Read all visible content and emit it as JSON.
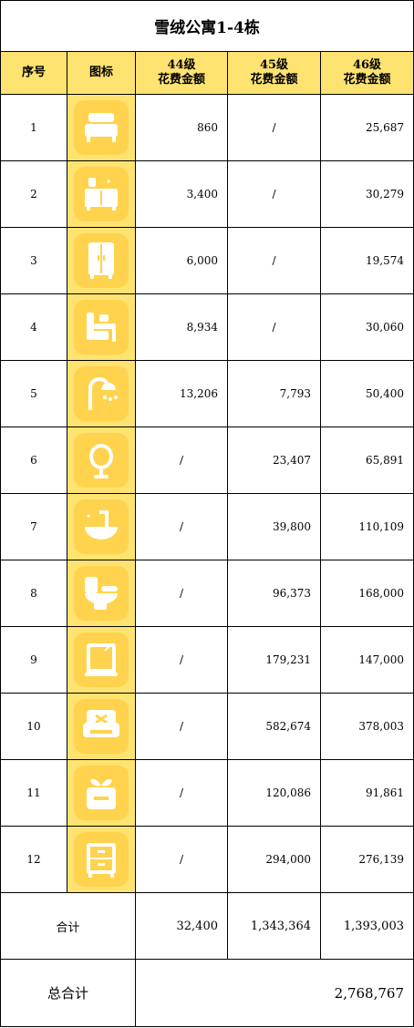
{
  "title": "雪绒公寓1-4栋",
  "headers": {
    "index": "序号",
    "icon": "图标",
    "lv44": "44级\n花费金额",
    "lv45": "45级\n花费金额",
    "lv46": "46级\n花费金额"
  },
  "rows": [
    {
      "no": "1",
      "icon": "bed-icon",
      "lv44": "860",
      "lv45": "/",
      "lv46": "25,687"
    },
    {
      "no": "2",
      "icon": "cabinet-icon",
      "lv44": "3,400",
      "lv45": "/",
      "lv46": "30,279"
    },
    {
      "no": "3",
      "icon": "wardrobe-icon",
      "lv44": "6,000",
      "lv45": "/",
      "lv46": "19,574"
    },
    {
      "no": "4",
      "icon": "desk-icon",
      "lv44": "8,934",
      "lv45": "/",
      "lv46": "30,060"
    },
    {
      "no": "5",
      "icon": "shower-icon",
      "lv44": "13,206",
      "lv45": "7,793",
      "lv46": "50,400"
    },
    {
      "no": "6",
      "icon": "mirror-icon",
      "lv44": "/",
      "lv45": "23,407",
      "lv46": "65,891"
    },
    {
      "no": "7",
      "icon": "sink-icon",
      "lv44": "/",
      "lv45": "39,800",
      "lv46": "110,109"
    },
    {
      "no": "8",
      "icon": "toilet-icon",
      "lv44": "/",
      "lv45": "96,373",
      "lv46": "168,000"
    },
    {
      "no": "9",
      "icon": "window-icon",
      "lv44": "/",
      "lv45": "179,231",
      "lv46": "147,000"
    },
    {
      "no": "10",
      "icon": "sofa-icon",
      "lv44": "/",
      "lv45": "582,674",
      "lv46": "378,003"
    },
    {
      "no": "11",
      "icon": "plant-icon",
      "lv44": "/",
      "lv45": "120,086",
      "lv46": "91,861"
    },
    {
      "no": "12",
      "icon": "drawer-icon",
      "lv44": "/",
      "lv45": "294,000",
      "lv46": "276,139"
    }
  ],
  "total": {
    "label": "合计",
    "lv44": "32,400",
    "lv45": "1,343,364",
    "lv46": "1,393,003"
  },
  "grand_total": {
    "label": "总合计",
    "value": "2,768,767"
  },
  "colors": {
    "header_bg": "#ffe371",
    "icon_bg": "#ffd34d",
    "icon_fg": "#ffffff"
  }
}
